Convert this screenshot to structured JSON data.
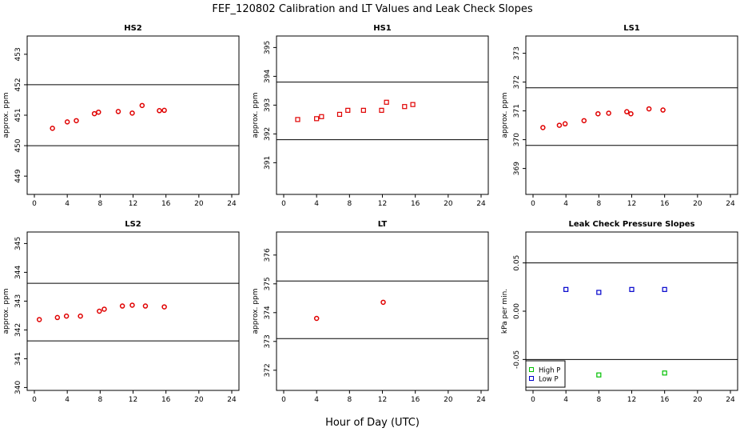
{
  "figure": {
    "title": "FEF_120802  Calibration and LT Values and Leak Check Slopes",
    "xlabel": "Hour of Day (UTC)"
  },
  "chart_data": [
    {
      "type": "scatter",
      "title": "HS2",
      "ylabel": "approx. ppm",
      "xlim": [
        0,
        24
      ],
      "ylim": [
        448.4,
        453.6
      ],
      "xticks": [
        0,
        4,
        8,
        12,
        16,
        20,
        24
      ],
      "yticks": [
        449,
        450,
        451,
        452,
        453
      ],
      "hlines": [
        450,
        452
      ],
      "series": [
        {
          "color": "#e00000",
          "marker": "circle",
          "x": [
            2.2,
            4,
            5.1,
            7.3,
            7.8,
            10.2,
            11.9,
            13.1,
            15.2,
            15.8
          ],
          "y": [
            450.57,
            450.78,
            450.82,
            451.05,
            451.1,
            451.12,
            451.07,
            451.32,
            451.15,
            451.16
          ]
        }
      ]
    },
    {
      "type": "scatter",
      "title": "HS1",
      "ylabel": "approx. ppm",
      "xlim": [
        0,
        24
      ],
      "ylim": [
        389.9,
        395.4
      ],
      "xticks": [
        0,
        4,
        8,
        12,
        16,
        20,
        24
      ],
      "yticks": [
        391,
        392,
        393,
        394,
        395
      ],
      "hlines": [
        391.8,
        393.8
      ],
      "series": [
        {
          "color": "#e00000",
          "marker": "square",
          "x": [
            1.7,
            4,
            4.6,
            6.8,
            7.8,
            9.7,
            11.9,
            12.5,
            14.7,
            15.7
          ],
          "y": [
            392.5,
            392.53,
            392.6,
            392.68,
            392.82,
            392.82,
            392.82,
            393.1,
            392.95,
            393.02
          ]
        }
      ]
    },
    {
      "type": "scatter",
      "title": "LS1",
      "ylabel": "approx. ppm",
      "xlim": [
        0,
        24
      ],
      "ylim": [
        368.1,
        373.6
      ],
      "xticks": [
        0,
        4,
        8,
        12,
        16,
        20,
        24
      ],
      "yticks": [
        369,
        370,
        371,
        372,
        373
      ],
      "hlines": [
        369.8,
        371.8
      ],
      "series": [
        {
          "color": "#e00000",
          "marker": "circle",
          "x": [
            1.2,
            3.2,
            3.9,
            6.2,
            7.9,
            9.2,
            11.4,
            11.9,
            14.1,
            15.8
          ],
          "y": [
            370.42,
            370.5,
            370.55,
            370.66,
            370.9,
            370.92,
            370.97,
            370.9,
            371.07,
            371.03
          ]
        }
      ]
    },
    {
      "type": "scatter",
      "title": "LS2",
      "ylabel": "approx. ppm",
      "xlim": [
        0,
        24
      ],
      "ylim": [
        339.9,
        345.4
      ],
      "xticks": [
        0,
        4,
        8,
        12,
        16,
        20,
        24
      ],
      "yticks": [
        340,
        341,
        342,
        343,
        344,
        345
      ],
      "hlines": [
        341.62,
        343.62
      ],
      "series": [
        {
          "color": "#e00000",
          "marker": "circle",
          "x": [
            0.6,
            2.8,
            3.9,
            5.6,
            7.9,
            8.5,
            10.7,
            11.9,
            13.5,
            15.8
          ],
          "y": [
            342.36,
            342.43,
            342.48,
            342.48,
            342.65,
            342.72,
            342.83,
            342.86,
            342.83,
            342.8
          ]
        }
      ]
    },
    {
      "type": "scatter",
      "title": "LT",
      "ylabel": "approx. ppm",
      "xlim": [
        0,
        24
      ],
      "ylim": [
        371.3,
        376.8
      ],
      "xticks": [
        0,
        4,
        8,
        12,
        16,
        20,
        24
      ],
      "yticks": [
        372,
        373,
        374,
        375,
        376
      ],
      "hlines": [
        373.1,
        375.1
      ],
      "series": [
        {
          "color": "#e00000",
          "marker": "circle",
          "x": [
            4,
            12.1
          ],
          "y": [
            373.8,
            374.36
          ]
        }
      ]
    },
    {
      "type": "scatter",
      "title": "Leak Check Pressure Slopes",
      "ylabel": "kPa per min.",
      "xlim": [
        0,
        24
      ],
      "ylim": [
        -0.082,
        0.082
      ],
      "xticks": [
        0,
        4,
        8,
        12,
        16,
        20,
        24
      ],
      "yticks": [
        -0.05,
        0.0,
        0.05
      ],
      "ytick_labels": [
        "-0.05",
        "0.00",
        "0.05"
      ],
      "hlines": [
        -0.05,
        0.05
      ],
      "legend": {
        "position": "bottom-left",
        "entries": [
          {
            "label": "High P",
            "color": "#00c000"
          },
          {
            "label": "Low P",
            "color": "#0000cc"
          }
        ]
      },
      "series": [
        {
          "name": "High P",
          "color": "#00c000",
          "marker": "square",
          "x": [
            8,
            16
          ],
          "y": [
            -0.066,
            -0.064
          ]
        },
        {
          "name": "Low P",
          "color": "#0000cc",
          "marker": "square",
          "x": [
            4,
            8,
            12,
            16
          ],
          "y": [
            0.0225,
            0.0195,
            0.0225,
            0.0225
          ]
        }
      ]
    }
  ]
}
